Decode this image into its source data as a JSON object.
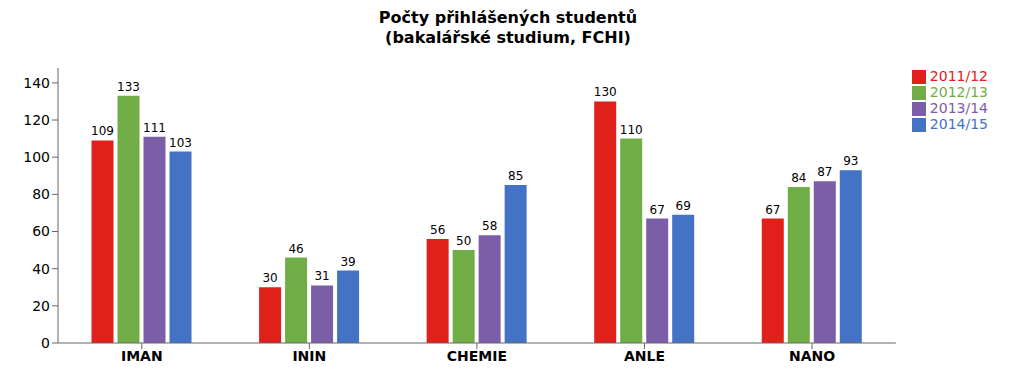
{
  "chart_data": {
    "type": "bar",
    "title": "Počty přihlášených studentů",
    "subtitle": "(bakalářské studium, FCHI)",
    "categories": [
      "IMAN",
      "ININ",
      "CHEMIE",
      "ANLE",
      "NANO"
    ],
    "series": [
      {
        "name": "2011/12",
        "color": "#e0201a",
        "values": [
          109,
          30,
          56,
          130,
          67
        ]
      },
      {
        "name": "2012/13",
        "color": "#70ad47",
        "values": [
          133,
          46,
          50,
          110,
          84
        ]
      },
      {
        "name": "2013/14",
        "color": "#7b5ea7",
        "values": [
          111,
          31,
          58,
          67,
          87
        ]
      },
      {
        "name": "2014/15",
        "color": "#4472c4",
        "values": [
          103,
          39,
          85,
          69,
          93
        ]
      }
    ],
    "ylim": [
      0,
      148
    ],
    "yticks": [
      0,
      20,
      40,
      60,
      80,
      100,
      120,
      140
    ],
    "grid": false,
    "legend": "upper right",
    "data_labels": true
  }
}
